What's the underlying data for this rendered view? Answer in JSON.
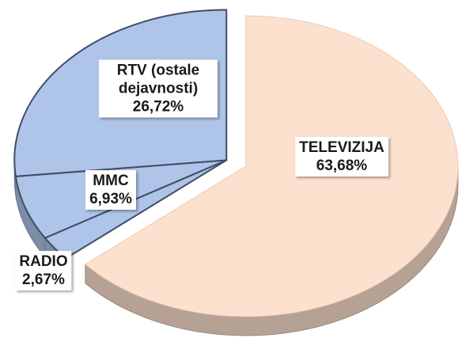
{
  "chart_data": {
    "type": "pie",
    "categories": [
      "TELEVIZIJA",
      "RADIO",
      "MMC",
      "RTV (ostale dejavnosti)"
    ],
    "values": [
      63.68,
      2.67,
      6.93,
      26.72
    ],
    "value_labels": [
      "63,68%",
      "2,67%",
      "6,93%",
      "26,72%"
    ],
    "colors": [
      "#fde1cf",
      "#aec4e8",
      "#aec4e8",
      "#aec4e8"
    ]
  }
}
